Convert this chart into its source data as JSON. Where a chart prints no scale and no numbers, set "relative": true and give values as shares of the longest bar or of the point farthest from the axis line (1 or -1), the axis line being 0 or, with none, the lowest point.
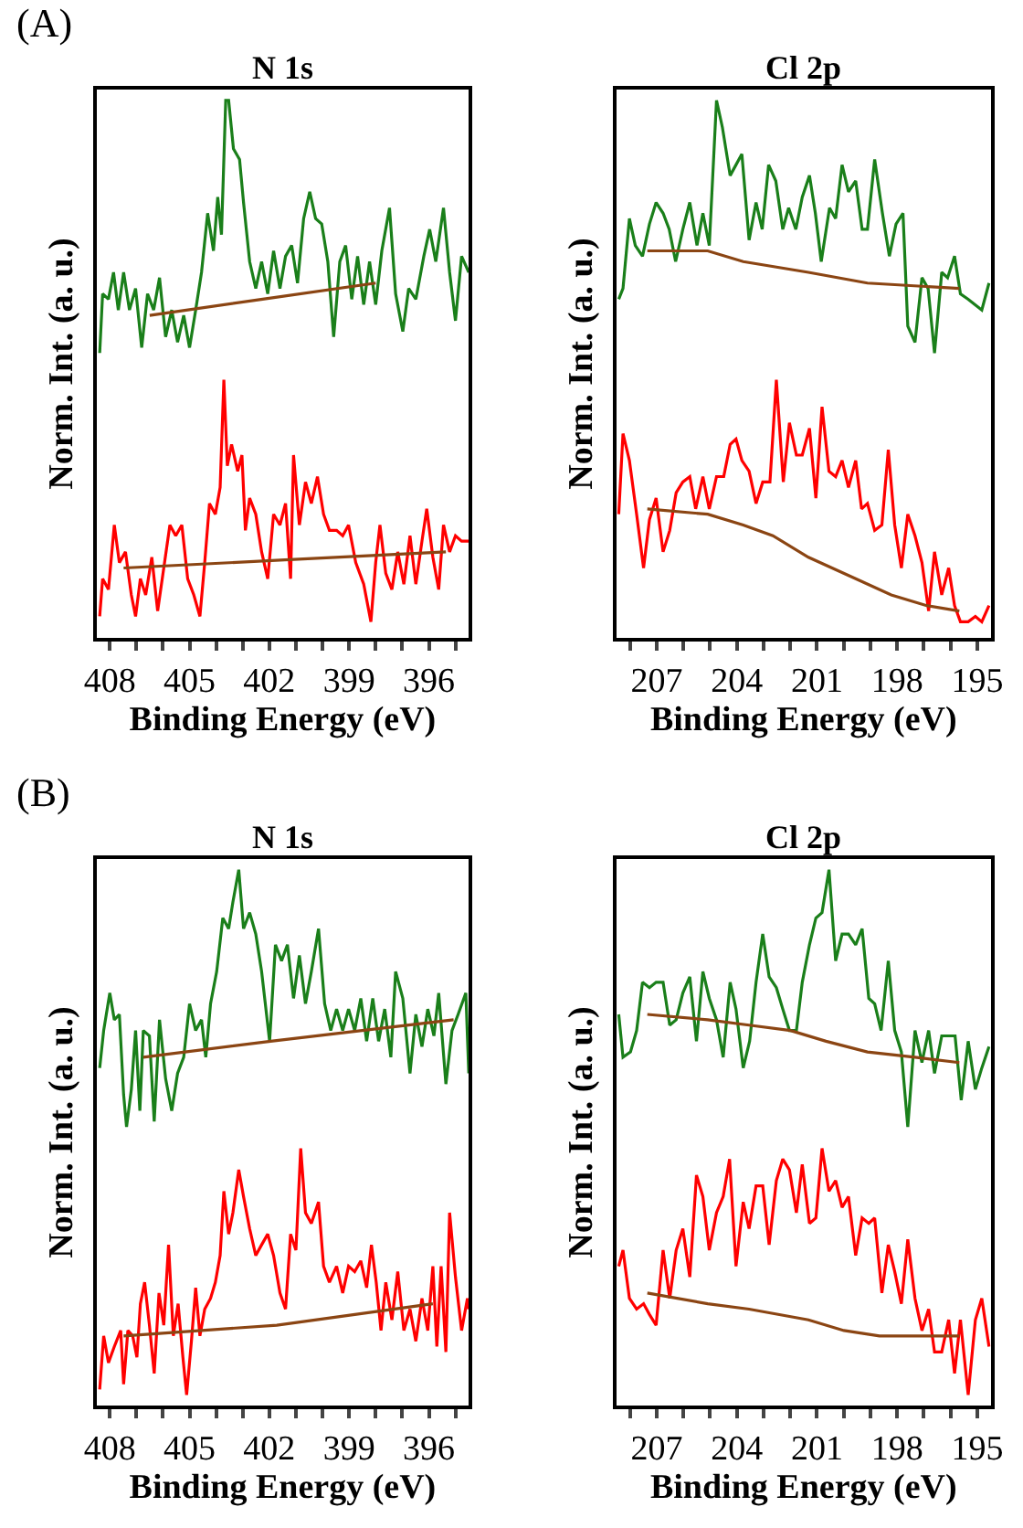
{
  "chart_data": [
    {
      "type": "line",
      "title": "N 1s",
      "xlabel": "Binding Energy (eV)",
      "ylabel": "Norm. Int. (a. u.)",
      "annotations": [
        "(A)"
      ],
      "relative": true,
      "xlim": [
        408.5,
        394.5
      ],
      "xticks": [
        408,
        {
          "value": 407,
          "label": null
        },
        {
          "value": 406,
          "label": null
        },
        405,
        {
          "value": 404,
          "label": null
        },
        {
          "value": 403,
          "label": null
        },
        402,
        {
          "value": 401,
          "label": null
        },
        {
          "value": 400,
          "label": null
        },
        399,
        {
          "value": 398,
          "label": null
        },
        {
          "value": 397,
          "label": null
        },
        396,
        {
          "value": 395,
          "label": null
        }
      ],
      "series": [
        {
          "color": "#1a7f1a",
          "x": [
            408.38,
            408.27,
            408.05,
            407.86,
            407.68,
            407.48,
            407.26,
            407.03,
            406.8,
            406.58,
            406.35,
            406.13,
            405.9,
            405.67,
            405.45,
            405.22,
            405.0,
            404.77,
            404.55,
            404.32,
            404.1,
            403.94,
            403.8,
            403.64,
            403.53,
            403.35,
            403.12,
            402.97,
            402.74,
            402.51,
            402.29,
            402.06,
            401.84,
            401.6,
            401.39,
            401.16,
            400.94,
            400.71,
            400.48,
            400.26,
            400.03,
            399.8,
            399.58,
            399.35,
            399.13,
            398.9,
            398.68,
            398.45,
            398.23,
            398.0,
            397.77,
            397.48,
            397.25,
            396.98,
            396.76,
            396.49,
            396.19,
            395.97,
            395.74,
            395.45,
            395.22,
            395.0,
            394.77,
            394.5
          ],
          "values": [
            0.53,
            0.64,
            0.63,
            0.68,
            0.61,
            0.68,
            0.61,
            0.65,
            0.54,
            0.64,
            0.61,
            0.67,
            0.56,
            0.61,
            0.55,
            0.6,
            0.54,
            0.61,
            0.68,
            0.79,
            0.72,
            0.82,
            0.75,
            1.0,
            1.0,
            0.91,
            0.89,
            0.81,
            0.7,
            0.65,
            0.7,
            0.64,
            0.72,
            0.65,
            0.71,
            0.73,
            0.66,
            0.78,
            0.83,
            0.78,
            0.77,
            0.7,
            0.56,
            0.7,
            0.73,
            0.63,
            0.71,
            0.62,
            0.7,
            0.62,
            0.72,
            0.8,
            0.64,
            0.57,
            0.65,
            0.63,
            0.71,
            0.76,
            0.7,
            0.8,
            0.68,
            0.59,
            0.71,
            0.68
          ]
        },
        {
          "color": "#8b4513",
          "x": [
            406.5,
            402.25,
            398.0
          ],
          "values": [
            0.6,
            0.63,
            0.66
          ]
        },
        {
          "color": "#ff0000",
          "x": [
            408.38,
            408.27,
            408.05,
            407.83,
            407.64,
            407.41,
            407.19,
            407.03,
            406.85,
            406.65,
            406.42,
            406.2,
            405.97,
            405.74,
            405.52,
            405.29,
            405.07,
            404.84,
            404.61,
            404.43,
            404.25,
            404.03,
            403.85,
            403.71,
            403.58,
            403.42,
            403.19,
            403.03,
            402.9,
            402.74,
            402.51,
            402.29,
            402.06,
            401.84,
            401.6,
            401.39,
            401.2,
            401.09,
            400.87,
            400.64,
            400.42,
            400.19,
            399.96,
            399.74,
            399.47,
            399.24,
            399.02,
            398.75,
            398.45,
            398.18,
            398.0,
            397.84,
            397.62,
            397.39,
            397.17,
            396.94,
            396.71,
            396.49,
            396.26,
            396.08,
            395.85,
            395.63,
            395.45,
            395.22,
            395.0,
            394.77,
            394.5
          ],
          "values": [
            0.04,
            0.11,
            0.09,
            0.21,
            0.14,
            0.16,
            0.08,
            0.04,
            0.11,
            0.08,
            0.15,
            0.05,
            0.13,
            0.21,
            0.19,
            0.21,
            0.11,
            0.08,
            0.04,
            0.14,
            0.25,
            0.23,
            0.28,
            0.48,
            0.32,
            0.36,
            0.31,
            0.34,
            0.2,
            0.26,
            0.23,
            0.16,
            0.11,
            0.23,
            0.21,
            0.25,
            0.11,
            0.34,
            0.21,
            0.29,
            0.25,
            0.3,
            0.23,
            0.2,
            0.2,
            0.19,
            0.21,
            0.14,
            0.1,
            0.03,
            0.14,
            0.21,
            0.12,
            0.09,
            0.16,
            0.1,
            0.19,
            0.1,
            0.18,
            0.24,
            0.15,
            0.09,
            0.21,
            0.16,
            0.19,
            0.18,
            0.18
          ]
        },
        {
          "color": "#8b4513",
          "x": [
            407.48,
            401.42,
            395.36
          ],
          "values": [
            0.13,
            0.145,
            0.16
          ]
        }
      ]
    },
    {
      "type": "line",
      "title": "Cl 2p",
      "xlabel": "Binding Energy (eV)",
      "ylabel": "Norm. Int. (a. u.)",
      "relative": true,
      "xlim": [
        208.5,
        194.5
      ],
      "xticks": [
        {
          "value": 208,
          "label": null
        },
        207,
        {
          "value": 206,
          "label": null
        },
        {
          "value": 205,
          "label": null
        },
        204,
        {
          "value": 203,
          "label": null
        },
        {
          "value": 202,
          "label": null
        },
        201,
        {
          "value": 200,
          "label": null
        },
        {
          "value": 199,
          "label": null
        },
        198,
        {
          "value": 197,
          "label": null
        },
        {
          "value": 196,
          "label": null
        },
        195
      ],
      "series": [
        {
          "color": "#1a7f1a",
          "x": [
            208.42,
            208.26,
            208.02,
            207.8,
            207.53,
            207.27,
            207.02,
            206.76,
            206.53,
            206.29,
            206.02,
            205.76,
            205.49,
            205.27,
            205.03,
            204.76,
            204.54,
            204.25,
            204.03,
            203.81,
            203.54,
            203.28,
            203.05,
            202.81,
            202.54,
            202.28,
            202.06,
            201.79,
            201.55,
            201.28,
            201.06,
            200.84,
            200.53,
            200.3,
            200.06,
            199.82,
            199.55,
            199.31,
            199.11,
            198.84,
            198.55,
            198.29,
            198.04,
            197.78,
            197.6,
            197.33,
            197.07,
            196.84,
            196.6,
            196.33,
            196.11,
            195.85,
            195.63,
            195.34,
            194.83,
            194.56
          ],
          "values": [
            0.63,
            0.65,
            0.78,
            0.73,
            0.71,
            0.77,
            0.81,
            0.79,
            0.76,
            0.7,
            0.76,
            0.81,
            0.73,
            0.79,
            0.73,
            1.0,
            0.95,
            0.86,
            0.88,
            0.9,
            0.74,
            0.81,
            0.76,
            0.88,
            0.85,
            0.76,
            0.8,
            0.76,
            0.82,
            0.86,
            0.79,
            0.7,
            0.8,
            0.78,
            0.88,
            0.83,
            0.85,
            0.76,
            0.76,
            0.89,
            0.79,
            0.71,
            0.77,
            0.79,
            0.58,
            0.55,
            0.67,
            0.65,
            0.53,
            0.68,
            0.67,
            0.71,
            0.64,
            0.63,
            0.61,
            0.66
          ]
        },
        {
          "color": "#8b4513",
          "x": [
            207.35,
            205.09,
            203.76,
            201.32,
            199.11,
            195.67
          ],
          "values": [
            0.72,
            0.72,
            0.7,
            0.68,
            0.66,
            0.65
          ]
        },
        {
          "color": "#ff0000",
          "x": [
            208.42,
            208.26,
            208.02,
            207.75,
            207.49,
            207.27,
            207.02,
            206.76,
            206.51,
            206.27,
            206.02,
            205.76,
            205.54,
            205.27,
            205.03,
            204.76,
            204.49,
            204.25,
            204.03,
            203.81,
            203.54,
            203.28,
            203.03,
            202.76,
            202.52,
            202.26,
            202.03,
            201.77,
            201.55,
            201.28,
            201.04,
            200.81,
            200.55,
            200.3,
            200.06,
            199.82,
            199.55,
            199.33,
            199.11,
            198.84,
            198.57,
            198.33,
            198.09,
            197.84,
            197.6,
            197.33,
            197.07,
            196.82,
            196.6,
            196.33,
            196.07,
            195.85,
            195.63,
            195.34,
            195.07,
            194.83,
            194.56
          ],
          "values": [
            0.23,
            0.38,
            0.33,
            0.23,
            0.13,
            0.22,
            0.26,
            0.16,
            0.2,
            0.27,
            0.29,
            0.3,
            0.24,
            0.3,
            0.24,
            0.3,
            0.3,
            0.36,
            0.37,
            0.33,
            0.31,
            0.25,
            0.29,
            0.29,
            0.48,
            0.29,
            0.4,
            0.34,
            0.34,
            0.39,
            0.26,
            0.43,
            0.31,
            0.3,
            0.33,
            0.28,
            0.33,
            0.24,
            0.25,
            0.2,
            0.21,
            0.35,
            0.21,
            0.13,
            0.23,
            0.19,
            0.14,
            0.05,
            0.16,
            0.08,
            0.13,
            0.06,
            0.03,
            0.03,
            0.04,
            0.03,
            0.06
          ]
        },
        {
          "color": "#8b4513",
          "x": [
            207.35,
            205.09,
            203.76,
            202.65,
            201.32,
            199.55,
            198.22,
            196.89,
            195.67
          ],
          "values": [
            0.24,
            0.23,
            0.21,
            0.19,
            0.15,
            0.11,
            0.08,
            0.06,
            0.05
          ]
        }
      ]
    },
    {
      "type": "line",
      "title": "N 1s",
      "xlabel": "Binding Energy (eV)",
      "ylabel": "Norm. Int. (a. u.)",
      "annotations": [
        "(B)"
      ],
      "relative": true,
      "xlim": [
        408.5,
        394.5
      ],
      "xticks": [
        408,
        {
          "value": 407,
          "label": null
        },
        {
          "value": 406,
          "label": null
        },
        405,
        {
          "value": 404,
          "label": null
        },
        {
          "value": 403,
          "label": null
        },
        402,
        {
          "value": 401,
          "label": null
        },
        {
          "value": 400,
          "label": null
        },
        399,
        {
          "value": 398,
          "label": null
        },
        {
          "value": 397,
          "label": null
        },
        396,
        {
          "value": 395,
          "label": null
        }
      ],
      "series": [
        {
          "color": "#1a7f1a",
          "x": [
            408.38,
            408.23,
            408.0,
            407.83,
            407.64,
            407.48,
            407.37,
            407.19,
            407.03,
            406.87,
            406.74,
            406.51,
            406.33,
            406.13,
            405.9,
            405.67,
            405.45,
            405.22,
            405.0,
            404.77,
            404.55,
            404.39,
            404.21,
            403.98,
            403.75,
            403.53,
            403.37,
            403.15,
            402.97,
            402.74,
            402.51,
            402.29,
            401.99,
            401.77,
            401.54,
            401.32,
            401.09,
            400.87,
            400.64,
            400.42,
            400.15,
            399.92,
            399.69,
            399.47,
            399.24,
            399.02,
            398.79,
            398.56,
            398.34,
            398.11,
            397.89,
            397.66,
            397.43,
            397.25,
            396.98,
            396.71,
            396.49,
            396.26,
            396.04,
            395.81,
            395.63,
            395.36,
            395.13,
            394.9,
            394.61,
            394.5
          ],
          "values": [
            0.63,
            0.7,
            0.77,
            0.72,
            0.73,
            0.58,
            0.52,
            0.59,
            0.7,
            0.55,
            0.7,
            0.69,
            0.53,
            0.72,
            0.61,
            0.55,
            0.62,
            0.65,
            0.75,
            0.7,
            0.72,
            0.65,
            0.75,
            0.81,
            0.91,
            0.89,
            0.94,
            1.0,
            0.89,
            0.92,
            0.88,
            0.81,
            0.68,
            0.86,
            0.83,
            0.86,
            0.76,
            0.84,
            0.75,
            0.81,
            0.89,
            0.75,
            0.7,
            0.74,
            0.7,
            0.74,
            0.7,
            0.76,
            0.68,
            0.76,
            0.68,
            0.74,
            0.65,
            0.81,
            0.76,
            0.62,
            0.73,
            0.67,
            0.74,
            0.69,
            0.77,
            0.6,
            0.7,
            0.73,
            0.77,
            0.62
          ]
        },
        {
          "color": "#8b4513",
          "x": [
            406.74,
            401.95,
            395.07
          ],
          "values": [
            0.65,
            0.68,
            0.72
          ]
        },
        {
          "color": "#ff0000",
          "x": [
            408.38,
            408.23,
            408.05,
            407.83,
            407.59,
            407.48,
            407.32,
            407.14,
            406.98,
            406.85,
            406.69,
            406.51,
            406.33,
            406.15,
            405.97,
            405.79,
            405.61,
            405.43,
            405.25,
            405.11,
            404.93,
            404.77,
            404.61,
            404.43,
            404.21,
            404.03,
            403.85,
            403.71,
            403.53,
            403.37,
            403.15,
            402.97,
            402.74,
            402.51,
            402.29,
            402.06,
            401.84,
            401.6,
            401.39,
            401.2,
            401.0,
            400.82,
            400.64,
            400.42,
            400.15,
            399.96,
            399.74,
            399.47,
            399.24,
            399.02,
            398.79,
            398.56,
            398.34,
            398.16,
            397.98,
            397.8,
            397.62,
            397.39,
            397.17,
            396.94,
            396.71,
            396.49,
            396.26,
            396.04,
            395.85,
            395.7,
            395.54,
            395.36,
            395.22,
            395.0,
            394.77,
            394.55,
            394.5
          ],
          "values": [
            0.03,
            0.13,
            0.08,
            0.11,
            0.14,
            0.04,
            0.14,
            0.13,
            0.09,
            0.19,
            0.23,
            0.15,
            0.06,
            0.21,
            0.15,
            0.3,
            0.13,
            0.19,
            0.09,
            0.02,
            0.12,
            0.22,
            0.13,
            0.18,
            0.2,
            0.23,
            0.28,
            0.4,
            0.32,
            0.36,
            0.44,
            0.39,
            0.33,
            0.28,
            0.3,
            0.32,
            0.28,
            0.21,
            0.18,
            0.32,
            0.29,
            0.48,
            0.36,
            0.34,
            0.38,
            0.26,
            0.23,
            0.26,
            0.21,
            0.26,
            0.25,
            0.27,
            0.22,
            0.3,
            0.23,
            0.14,
            0.23,
            0.16,
            0.25,
            0.14,
            0.18,
            0.12,
            0.2,
            0.14,
            0.26,
            0.11,
            0.26,
            0.1,
            0.36,
            0.24,
            0.14,
            0.2,
            0.18
          ]
        },
        {
          "color": "#8b4513",
          "x": [
            407.48,
            401.72,
            395.85
          ],
          "values": [
            0.13,
            0.15,
            0.19
          ]
        }
      ]
    },
    {
      "type": "line",
      "title": "Cl 2p",
      "xlabel": "Binding Energy (eV)",
      "ylabel": "Norm. Int. (a. u.)",
      "relative": true,
      "xlim": [
        208.5,
        194.5
      ],
      "xticks": [
        {
          "value": 208,
          "label": null
        },
        207,
        {
          "value": 206,
          "label": null
        },
        {
          "value": 205,
          "label": null
        },
        204,
        {
          "value": 203,
          "label": null
        },
        {
          "value": 202,
          "label": null
        },
        201,
        {
          "value": 200,
          "label": null
        },
        {
          "value": 199,
          "label": null
        },
        198,
        {
          "value": 197,
          "label": null
        },
        {
          "value": 196,
          "label": null
        },
        195
      ],
      "series": [
        {
          "color": "#1a7f1a",
          "x": [
            208.42,
            208.26,
            207.98,
            207.75,
            207.53,
            207.27,
            207.02,
            206.76,
            206.51,
            206.27,
            206.02,
            205.76,
            205.51,
            205.27,
            205.03,
            204.76,
            204.51,
            204.25,
            204.03,
            203.76,
            203.52,
            203.28,
            203.03,
            202.79,
            202.52,
            202.28,
            202.03,
            201.77,
            201.55,
            201.28,
            201.04,
            200.81,
            200.55,
            200.3,
            200.06,
            199.82,
            199.55,
            199.31,
            199.06,
            198.84,
            198.6,
            198.33,
            198.09,
            197.84,
            197.6,
            197.33,
            197.07,
            196.82,
            196.6,
            196.33,
            196.07,
            195.83,
            195.6,
            195.34,
            195.07,
            194.83,
            194.56
          ],
          "values": [
            0.73,
            0.65,
            0.66,
            0.7,
            0.79,
            0.78,
            0.79,
            0.79,
            0.71,
            0.72,
            0.77,
            0.8,
            0.68,
            0.81,
            0.76,
            0.72,
            0.65,
            0.79,
            0.74,
            0.63,
            0.68,
            0.79,
            0.88,
            0.8,
            0.78,
            0.74,
            0.7,
            0.7,
            0.79,
            0.86,
            0.91,
            0.92,
            1.0,
            0.83,
            0.88,
            0.88,
            0.86,
            0.89,
            0.76,
            0.75,
            0.7,
            0.83,
            0.7,
            0.66,
            0.52,
            0.7,
            0.64,
            0.7,
            0.62,
            0.69,
            0.69,
            0.69,
            0.57,
            0.68,
            0.59,
            0.63,
            0.67
          ]
        },
        {
          "color": "#8b4513",
          "x": [
            207.35,
            205.09,
            203.54,
            201.99,
            200.66,
            199.11,
            197.33,
            195.67
          ],
          "values": [
            0.73,
            0.72,
            0.71,
            0.7,
            0.68,
            0.66,
            0.65,
            0.64
          ]
        },
        {
          "color": "#ff0000",
          "x": [
            208.42,
            208.26,
            208.02,
            207.75,
            207.49,
            207.27,
            207.02,
            206.76,
            206.51,
            206.27,
            206.02,
            205.76,
            205.51,
            205.27,
            205.03,
            204.76,
            204.51,
            204.27,
            204.03,
            203.76,
            203.54,
            203.28,
            203.03,
            202.79,
            202.52,
            202.28,
            202.03,
            201.77,
            201.55,
            201.28,
            201.04,
            200.81,
            200.55,
            200.3,
            200.06,
            199.82,
            199.55,
            199.31,
            199.06,
            198.84,
            198.57,
            198.33,
            198.09,
            197.84,
            197.6,
            197.33,
            197.07,
            196.82,
            196.6,
            196.33,
            196.07,
            195.85,
            195.63,
            195.34,
            195.07,
            194.83,
            194.56
          ],
          "values": [
            0.26,
            0.29,
            0.2,
            0.18,
            0.19,
            0.17,
            0.15,
            0.29,
            0.2,
            0.29,
            0.33,
            0.24,
            0.43,
            0.39,
            0.29,
            0.36,
            0.39,
            0.46,
            0.26,
            0.38,
            0.33,
            0.41,
            0.41,
            0.3,
            0.42,
            0.46,
            0.44,
            0.36,
            0.45,
            0.34,
            0.35,
            0.48,
            0.4,
            0.42,
            0.37,
            0.39,
            0.28,
            0.35,
            0.34,
            0.35,
            0.21,
            0.3,
            0.25,
            0.19,
            0.31,
            0.2,
            0.14,
            0.18,
            0.1,
            0.1,
            0.16,
            0.06,
            0.16,
            0.02,
            0.16,
            0.2,
            0.11
          ]
        },
        {
          "color": "#8b4513",
          "x": [
            207.35,
            205.09,
            203.54,
            201.32,
            199.99,
            198.66,
            196.89,
            195.67
          ],
          "values": [
            0.21,
            0.19,
            0.18,
            0.16,
            0.14,
            0.13,
            0.13,
            0.13
          ]
        }
      ]
    }
  ]
}
